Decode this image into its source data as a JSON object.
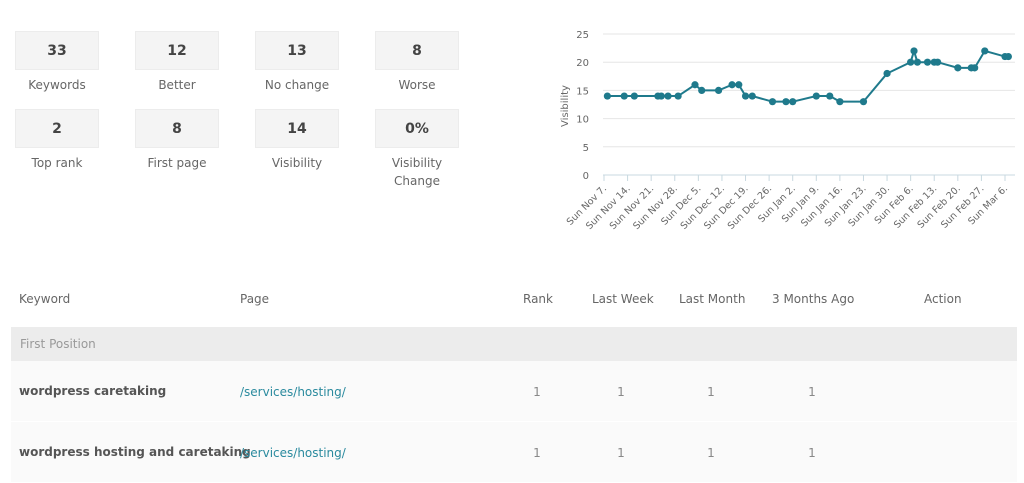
{
  "stats": [
    {
      "value": "33",
      "label": "Keywords"
    },
    {
      "value": "12",
      "label": "Better"
    },
    {
      "value": "13",
      "label": "No change"
    },
    {
      "value": "8",
      "label": "Worse"
    },
    {
      "value": "2",
      "label": "Top rank"
    },
    {
      "value": "8",
      "label": "First page"
    },
    {
      "value": "14",
      "label": "Visibility"
    },
    {
      "value": "0%",
      "label": "Visibility Change"
    }
  ],
  "chart_data": {
    "type": "line",
    "ylabel": "Visibility",
    "ylim": [
      0,
      25
    ],
    "yticks": [
      "0",
      "5",
      "10",
      "15",
      "20",
      "25"
    ],
    "xticks": [
      "Sun Nov 7.",
      "Sun Nov 14.",
      "Sun Nov 21.",
      "Sun Nov 28.",
      "Sun Dec 5.",
      "Sun Dec 12.",
      "Sun Dec 19.",
      "Sun Dec 26.",
      "Sun Jan 2.",
      "Sun Jan 9.",
      "Sun Jan 16.",
      "Sun Jan 23.",
      "Sun Jan 30.",
      "Sun Feb 6.",
      "Sun Feb 13.",
      "Sun Feb 20.",
      "Sun Feb 27.",
      "Sun Mar 6."
    ],
    "grid": true,
    "color": "#1f7a8c",
    "x": [
      "Nov 8",
      "Nov 13",
      "Nov 16",
      "Nov 23",
      "Nov 24",
      "Nov 26",
      "Nov 29",
      "Dec 4",
      "Dec 6",
      "Dec 11",
      "Dec 15",
      "Dec 17",
      "Dec 19",
      "Dec 21",
      "Dec 27",
      "Dec 31",
      "Jan 2",
      "Jan 9",
      "Jan 13",
      "Jan 16",
      "Jan 23",
      "Jan 30",
      "Feb 6",
      "Feb 7",
      "Feb 8",
      "Feb 11",
      "Feb 13",
      "Feb 14",
      "Feb 20",
      "Feb 24",
      "Feb 25",
      "Feb 28",
      "Mar 6",
      "Mar 7"
    ],
    "y": [
      14,
      14,
      14,
      14,
      14,
      14,
      14,
      16,
      15,
      15,
      16,
      16,
      14,
      14,
      13,
      13,
      13,
      14,
      14,
      13,
      13,
      18,
      20,
      22,
      20,
      20,
      20,
      20,
      19,
      19,
      19,
      22,
      21,
      21
    ]
  },
  "table": {
    "headers": {
      "keyword": "Keyword",
      "page": "Page",
      "rank": "Rank",
      "last_week": "Last Week",
      "last_month": "Last Month",
      "three_months": "3 Months Ago",
      "action": "Action"
    },
    "group": "First Position",
    "rows": [
      {
        "keyword": "wordpress caretaking",
        "page": "/services/hosting/",
        "rank": "1",
        "last_week": "1",
        "last_month": "1",
        "three_months": "1"
      },
      {
        "keyword": "wordpress hosting and caretaking",
        "page": "/services/hosting/",
        "rank": "1",
        "last_week": "1",
        "last_month": "1",
        "three_months": "1"
      }
    ]
  }
}
